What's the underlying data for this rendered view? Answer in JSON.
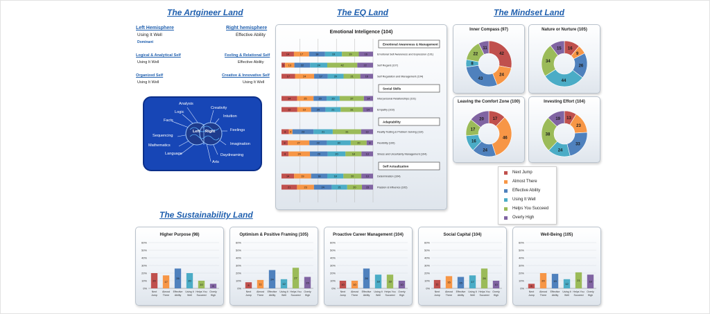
{
  "lands": {
    "artgineer": "The Artgineer Land",
    "eq": "The EQ Land",
    "mindset": "The Mindset Land",
    "sustainability": "The Sustainability Land"
  },
  "artgineer": {
    "left_hemisphere": "Left Hemisphere",
    "right_hemisphere": "Right hemisphere",
    "left_level": "Using It Well",
    "right_level": "Effective Ability",
    "dominant": "Dominant",
    "logical_self": "Logical & Analytical Self",
    "logical_level": "Using It Well",
    "feeling_self": "Feeling & Relational Self",
    "feeling_level": "Effective Ability",
    "organized_self": "Organized Self",
    "organized_level": "Using It Well",
    "creative_self": "Creative & Innovative Self",
    "creative_level": "Using It Well",
    "brain": {
      "left": "Left",
      "right": "Right",
      "labels_left": [
        "Analysis",
        "Logic",
        "Facts",
        "Sequencing",
        "Mathematics",
        "Language"
      ],
      "labels_right": [
        "Creativity",
        "Intuition",
        "Feelings",
        "Imagination",
        "Daydreaming",
        "Arts"
      ]
    }
  },
  "colors": {
    "next_jump": "#c0504d",
    "almost_there": "#f79646",
    "effective_ability": "#4f81bd",
    "using_it_well": "#4bacc6",
    "helps_you_succeed": "#9bbb59",
    "overly_high": "#8064a2",
    "land_title": "#1f5fae",
    "brain_bg": "#1746b6"
  },
  "legend": [
    "Next Jump",
    "Almost There",
    "Effective Ability",
    "Using It Well",
    "Helps You Succeed",
    "Overly High"
  ],
  "chart_data": [
    {
      "type": "bar",
      "stacked": true,
      "orientation": "horizontal",
      "title": "Emotional Inteligence (104)",
      "series_order": [
        "Next Jump",
        "Almost There",
        "Effective Ability",
        "Using It Well",
        "Helps You Succeed",
        "Overly High"
      ],
      "sections": [
        {
          "header": "Emotional Awareness & Management",
          "rows": [
            {
              "label": "Emotional Self Awareness and Expression (101)",
              "values": [
                14,
                17,
                18,
                19,
                19,
                16
              ]
            },
            {
              "label": "Self Regard (107)",
              "values": [
                5,
                13,
                22,
                24,
                42,
                22
              ]
            },
            {
              "label": "Self Regulation and Management (104)",
              "values": [
                17,
                24,
                17,
                20,
                21,
                16
              ]
            }
          ]
        },
        {
          "header": "Social Skills",
          "rows": [
            {
              "label": "Interpersonal Relationships (101)",
              "values": [
                24,
                25,
                20,
                20,
                37,
                14
              ]
            },
            {
              "label": "Empathy (103)",
              "values": [
                22,
                19,
                20,
                21,
                31,
                14
              ]
            }
          ]
        },
        {
          "header": "Adaptability",
          "rows": [
            {
              "label": "Reality Testing & Problem Solving (110)",
              "values": [
                8,
                4,
                23,
                21,
                31,
                13
              ]
            },
            {
              "label": "Flexibility (100)",
              "values": [
                8,
                27,
                22,
                30,
                20,
                8
              ]
            },
            {
              "label": "Stress and Uncertainty Management (104)",
              "values": [
                8,
                24,
                20,
                20,
                18,
                13
              ]
            }
          ]
        },
        {
          "header": "Self Actualization",
          "rows": [
            {
              "label": "Determination (104)",
              "values": [
                14,
                19,
                18,
                18,
                20,
                13
              ]
            },
            {
              "label": "Passion & Influence (102)",
              "values": [
                21,
                23,
                24,
                21,
                20,
                15
              ]
            }
          ]
        }
      ]
    },
    {
      "type": "pie",
      "donut": true,
      "title": "Inner Compass (97)",
      "categories": [
        "Next Jump",
        "Almost There",
        "Effective Ability",
        "Using It Well",
        "Helps You Succeed",
        "Overly High"
      ],
      "values": [
        42,
        24,
        43,
        8,
        22,
        11
      ]
    },
    {
      "type": "pie",
      "donut": true,
      "title": "Nature or Nurture (105)",
      "categories": [
        "Next Jump",
        "Almost There",
        "Effective Ability",
        "Using It Well",
        "Helps You Succeed",
        "Overly High"
      ],
      "values": [
        16,
        9,
        26,
        44,
        34,
        15
      ]
    },
    {
      "type": "pie",
      "donut": true,
      "title": "Leaving the Comfort Zone (100)",
      "categories": [
        "Next Jump",
        "Almost There",
        "Effective Ability",
        "Using It Well",
        "Helps You Succeed",
        "Overly High"
      ],
      "values": [
        17,
        46,
        24,
        16,
        17,
        20
      ]
    },
    {
      "type": "pie",
      "donut": true,
      "title": "Investing Effort (104)",
      "categories": [
        "Next Jump",
        "Almost There",
        "Effective Ability",
        "Using It Well",
        "Helps You Succeed",
        "Overly High"
      ],
      "values": [
        13,
        23,
        33,
        24,
        38,
        19
      ]
    },
    {
      "type": "bar",
      "title": "Higher Purpose (98)",
      "categories": [
        "Next Jump",
        "Almost There",
        "Effective Ability",
        "Using It Well",
        "Helps You Succeed",
        "Overly High"
      ],
      "values": [
        20,
        17,
        26,
        20,
        10,
        6
      ],
      "ylim": [
        0,
        60
      ],
      "yticks": [
        "0%",
        "10%",
        "20%",
        "30%",
        "40%",
        "50%",
        "60%"
      ]
    },
    {
      "type": "bar",
      "title": "Optimism & Positive Framing (105)",
      "categories": [
        "Next Jump",
        "Almost There",
        "Effective Ability",
        "Using It Well",
        "Helps You Succeed",
        "Overly High"
      ],
      "values": [
        8,
        11,
        24,
        12,
        27,
        15
      ],
      "ylim": [
        0,
        60
      ],
      "yticks": [
        "0%",
        "10%",
        "20%",
        "30%",
        "40%",
        "50%",
        "60%"
      ]
    },
    {
      "type": "bar",
      "title": "Proactive Career Management (104)",
      "categories": [
        "Next Jump",
        "Almost There",
        "Effective Ability",
        "Using It Well",
        "Helps You Succeed",
        "Overly High"
      ],
      "values": [
        10,
        10,
        26,
        18,
        18,
        10
      ],
      "ylim": [
        0,
        60
      ],
      "yticks": [
        "0%",
        "10%",
        "20%",
        "30%",
        "40%",
        "50%",
        "60%"
      ]
    },
    {
      "type": "bar",
      "title": "Social Capital (104)",
      "categories": [
        "Next Jump",
        "Almost There",
        "Effective Ability",
        "Using It Well",
        "Helps You Succeed",
        "Overly High"
      ],
      "values": [
        11,
        16,
        15,
        17,
        26,
        10
      ],
      "ylim": [
        0,
        60
      ],
      "yticks": [
        "0%",
        "10%",
        "20%",
        "30%",
        "40%",
        "50%",
        "60%"
      ]
    },
    {
      "type": "bar",
      "title": "Well-Being (105)",
      "categories": [
        "Next Jump",
        "Almost There",
        "Effective Ability",
        "Using It Well",
        "Helps You Succeed",
        "Overly High"
      ],
      "values": [
        6,
        20,
        19,
        12,
        21,
        18
      ],
      "ylim": [
        0,
        60
      ],
      "yticks": [
        "0%",
        "10%",
        "20%",
        "30%",
        "40%",
        "50%",
        "60%"
      ]
    }
  ]
}
